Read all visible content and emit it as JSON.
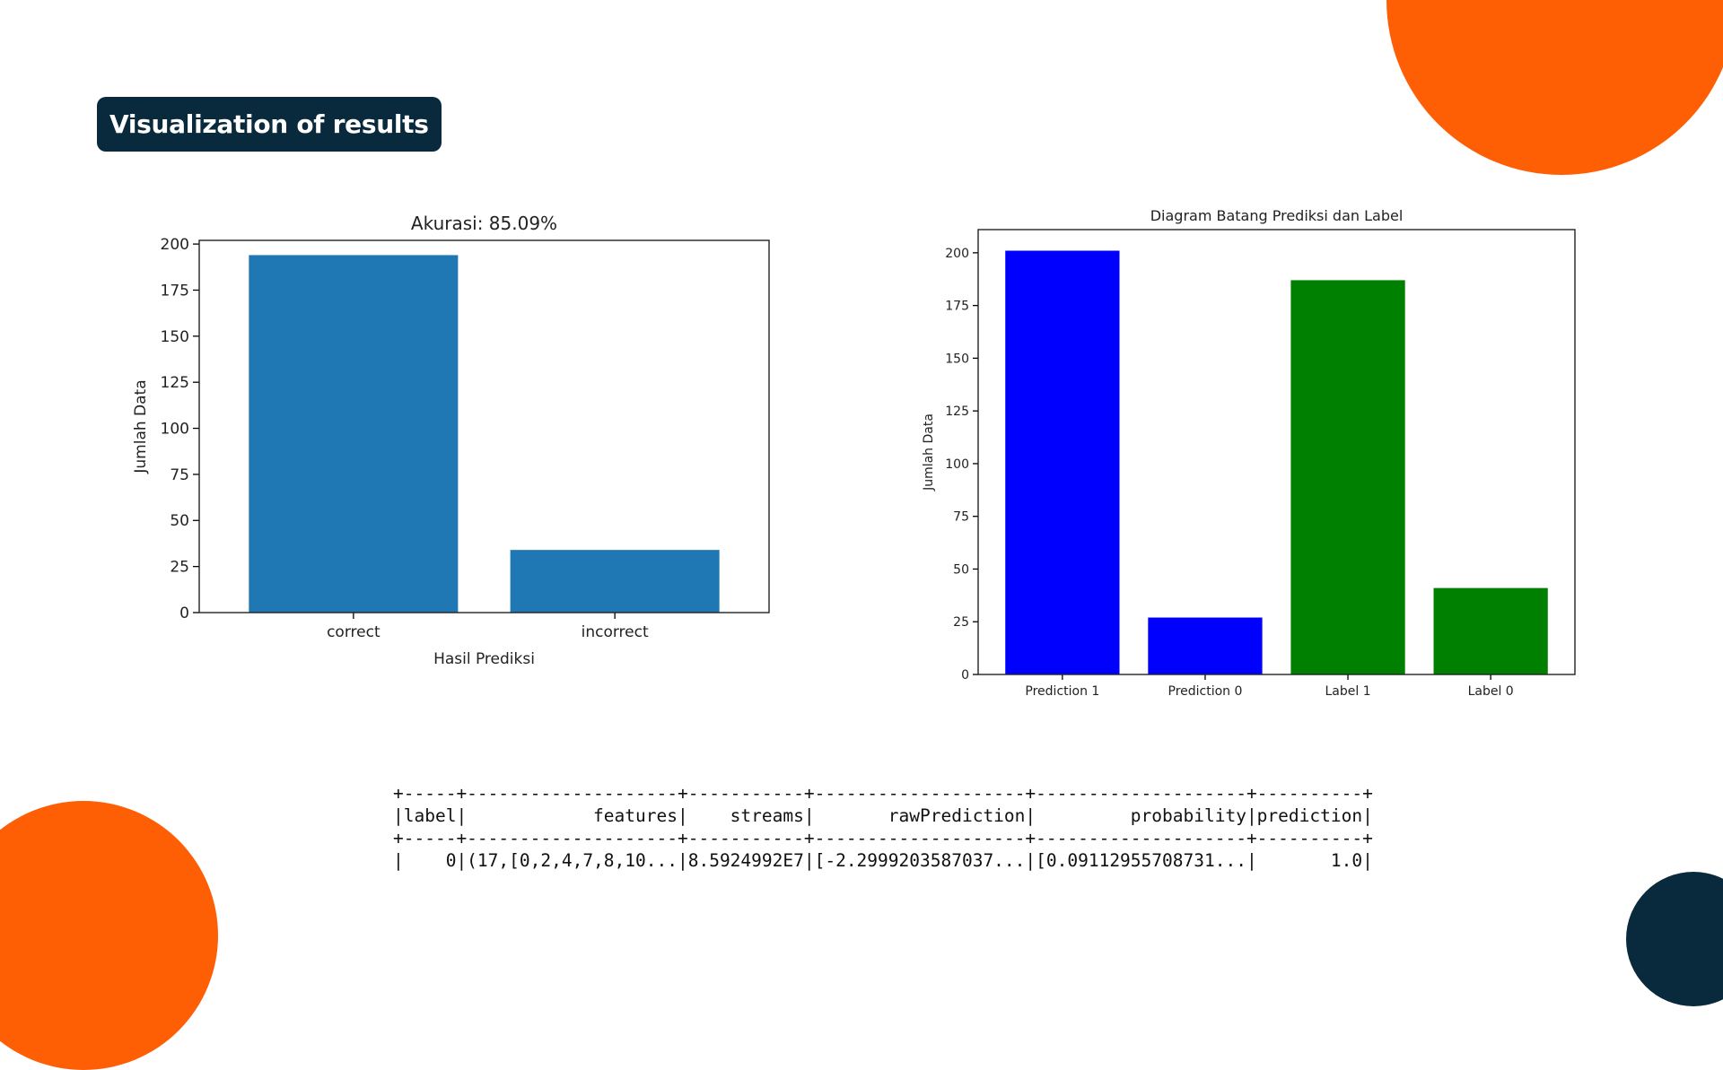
{
  "slide": {
    "title": "Visualization of results",
    "colors": {
      "orange": "#fe5f05",
      "navy": "#082a3c",
      "bar_default": "#1f77b4"
    }
  },
  "chart_data": [
    {
      "type": "bar",
      "title": "Akurasi: 85.09%",
      "xlabel": "Hasil Prediksi",
      "ylabel": "Jumlah Data",
      "categories": [
        "correct",
        "incorrect"
      ],
      "values": [
        194,
        34
      ],
      "colors": [
        "#1f77b4",
        "#1f77b4"
      ],
      "ylim": [
        0,
        202
      ],
      "yticks": [
        0,
        25,
        50,
        75,
        100,
        125,
        150,
        175,
        200
      ],
      "grid": false
    },
    {
      "type": "bar",
      "title": "Diagram Batang Prediksi dan Label",
      "xlabel": "",
      "ylabel": "Jumlah Data",
      "categories": [
        "Prediction 1",
        "Prediction 0",
        "Label 1",
        "Label 0"
      ],
      "values": [
        201,
        27,
        187,
        41
      ],
      "colors": [
        "#0000ff",
        "#0000ff",
        "#008000",
        "#008000"
      ],
      "ylim": [
        0,
        211
      ],
      "yticks": [
        0,
        25,
        50,
        75,
        100,
        125,
        150,
        175,
        200
      ],
      "grid": false
    }
  ],
  "table": {
    "separator": "+-----+--------------------+-----------+--------------------+--------------------+----------+",
    "header": "|label|            features|    streams|       rawPrediction|         probability|prediction|",
    "row": "|    0|(17,[0,2,4,7,8,10...|8.5924992E7|[-2.2999203587037...|[0.09112955708731...|       1.0|"
  }
}
